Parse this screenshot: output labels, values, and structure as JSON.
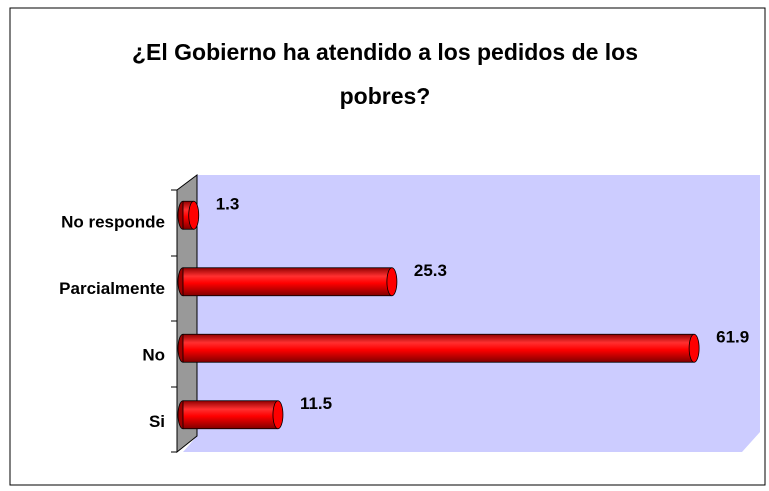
{
  "chart_data": {
    "type": "barh",
    "title": "¿El Gobierno ha atendido a los pedidos de los pobres?",
    "categories": [
      "No responde",
      "Parcialmente",
      "No",
      "Si"
    ],
    "values": [
      1.3,
      25.3,
      61.9,
      11.5
    ],
    "color": "#ff0000",
    "xlim": [
      0,
      70
    ]
  }
}
